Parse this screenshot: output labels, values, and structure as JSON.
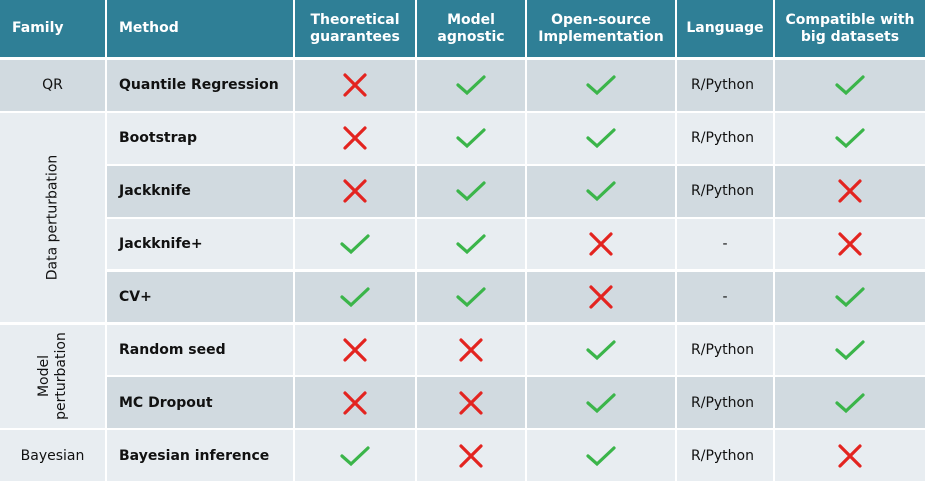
{
  "table": {
    "header": [
      "Family",
      "Method",
      "Theoretical guarantees",
      "Model agnostic",
      "Open-source Implementation",
      "Language",
      "Compatible with big datasets"
    ],
    "families": [
      {
        "label": "QR",
        "methods": [
          {
            "method": "Quantile Regression",
            "cells": [
              false,
              true,
              true,
              "R/Python",
              true
            ]
          }
        ]
      },
      {
        "label": "Data perturbation",
        "methods": [
          {
            "method": "Bootstrap",
            "cells": [
              false,
              true,
              true,
              "R/Python",
              true
            ]
          },
          {
            "method": "Jackknife",
            "cells": [
              false,
              true,
              true,
              "R/Python",
              false
            ]
          },
          {
            "method": "Jackknife+",
            "cells": [
              true,
              true,
              false,
              "-",
              false
            ]
          },
          {
            "method": "CV+",
            "cells": [
              true,
              true,
              false,
              "-",
              true
            ]
          }
        ]
      },
      {
        "label": "Model perturbation",
        "methods": [
          {
            "method": "Random seed",
            "cells": [
              false,
              false,
              true,
              "R/Python",
              true
            ]
          },
          {
            "method": "MC Dropout",
            "cells": [
              false,
              false,
              true,
              "R/Python",
              true
            ]
          }
        ]
      },
      {
        "label": "Bayesian",
        "methods": [
          {
            "method": "Bayesian inference",
            "cells": [
              true,
              false,
              true,
              "R/Python",
              false
            ]
          }
        ]
      }
    ]
  }
}
